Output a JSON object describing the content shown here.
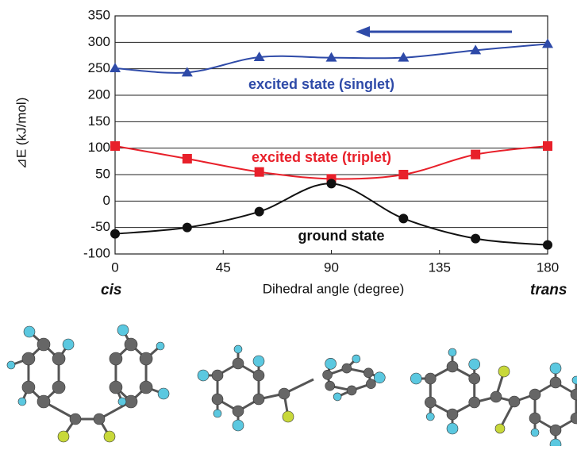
{
  "chart_data": {
    "type": "line",
    "y_label": "⊿E (kJ/mol)",
    "x_label": "Dihedral angle (degree)",
    "annotations": [
      "cis",
      "trans"
    ],
    "x": [
      0,
      30,
      60,
      90,
      120,
      150,
      180
    ],
    "series": [
      {
        "name": "excited state (singlet)",
        "color": "#2e4aa8",
        "marker": "triangle",
        "values": [
          251,
          243,
          272,
          271,
          271,
          285,
          297
        ]
      },
      {
        "name": "excited state (triplet)",
        "color": "#e8202a",
        "marker": "square",
        "values": [
          104,
          80,
          55,
          42,
          50,
          88,
          104
        ]
      },
      {
        "name": "ground state",
        "color": "#111111",
        "marker": "circle",
        "values": [
          -62,
          -50,
          -20,
          33,
          -33,
          -71,
          -83
        ]
      }
    ],
    "xlim": [
      0,
      180
    ],
    "xticks": [
      0,
      45,
      90,
      135,
      180
    ],
    "ylim": [
      -100,
      350
    ],
    "yticks": [
      -100,
      -50,
      0,
      50,
      100,
      150,
      200,
      250,
      300,
      350
    ],
    "grid": true
  }
}
